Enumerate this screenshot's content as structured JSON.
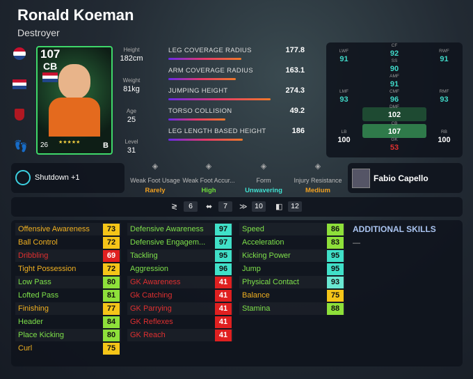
{
  "header": {
    "name": "Ronald Koeman",
    "playstyle": "Destroyer"
  },
  "card": {
    "rating": 107,
    "position": "CB",
    "level_badge": 26,
    "grade": "B"
  },
  "physique": [
    {
      "label": "Height",
      "value": "182cm"
    },
    {
      "label": "Weight",
      "value": "81kg"
    },
    {
      "label": "Age",
      "value": 25
    },
    {
      "label": "Level",
      "value": 31
    }
  ],
  "coverage": [
    {
      "label": "LEG COVERAGE RADIUS",
      "value": 177.8
    },
    {
      "label": "ARM COVERAGE RADIUS",
      "value": 163.1
    },
    {
      "label": "JUMPING HEIGHT",
      "value": 274.3
    },
    {
      "label": "TORSO COLLISION",
      "value": 49.2
    },
    {
      "label": "LEG LENGTH BASED HEIGHT",
      "value": 186
    }
  ],
  "positions": [
    {
      "pos": "LWF",
      "rating": 91
    },
    {
      "pos": "CF",
      "rating": 92
    },
    {
      "pos": "RWF",
      "rating": 91
    },
    {
      "pos": "SS",
      "rating": 90
    },
    {
      "pos": "AMF",
      "rating": 91
    },
    {
      "pos": "LMF",
      "rating": 93
    },
    {
      "pos": "CMF",
      "rating": 96
    },
    {
      "pos": "RMF",
      "rating": 93
    },
    {
      "pos": "DMF",
      "rating": 102
    },
    {
      "pos": "LB",
      "rating": 100
    },
    {
      "pos": "CB",
      "rating": 107
    },
    {
      "pos": "RB",
      "rating": 100
    },
    {
      "pos": "GK",
      "rating": 53
    }
  ],
  "skill": "Shutdown +1",
  "traits": [
    {
      "label": "Weak Foot Usage",
      "value": "Rarely"
    },
    {
      "label": "Weak Foot Accur...",
      "value": "High"
    },
    {
      "label": "Form",
      "value": "Unwavering"
    },
    {
      "label": "Injury Resistance",
      "value": "Medium"
    }
  ],
  "manager": "Fabio Capello",
  "boosts": [
    6,
    7,
    10,
    12
  ],
  "stats": [
    [
      {
        "name": "Offensive Awareness",
        "value": 73
      },
      {
        "name": "Ball Control",
        "value": 72
      },
      {
        "name": "Dribbling",
        "value": 69
      },
      {
        "name": "Tight Possession",
        "value": 72
      },
      {
        "name": "Low Pass",
        "value": 80
      },
      {
        "name": "Lofted Pass",
        "value": 81
      },
      {
        "name": "Finishing",
        "value": 77
      },
      {
        "name": "Header",
        "value": 84
      },
      {
        "name": "Place Kicking",
        "value": 80
      },
      {
        "name": "Curl",
        "value": 75
      }
    ],
    [
      {
        "name": "Defensive Awareness",
        "value": 97
      },
      {
        "name": "Defensive Engagem...",
        "value": 97
      },
      {
        "name": "Tackling",
        "value": 95
      },
      {
        "name": "Aggression",
        "value": 96
      },
      {
        "name": "GK Awareness",
        "value": 41
      },
      {
        "name": "Gk Catching",
        "value": 41
      },
      {
        "name": "GK Parrying",
        "value": 41
      },
      {
        "name": "GK Reflexes",
        "value": 41
      },
      {
        "name": "GK Reach",
        "value": 41
      }
    ],
    [
      {
        "name": "Speed",
        "value": 86
      },
      {
        "name": "Acceleration",
        "value": 83
      },
      {
        "name": "Kicking Power",
        "value": 95
      },
      {
        "name": "Jump",
        "value": 95
      },
      {
        "name": "Physical Contact",
        "value": 93
      },
      {
        "name": "Balance",
        "value": 75
      },
      {
        "name": "Stamina",
        "value": 88
      }
    ]
  ],
  "additional_skills": {
    "title": "ADDITIONAL SKILLS",
    "items": [
      "—"
    ]
  }
}
